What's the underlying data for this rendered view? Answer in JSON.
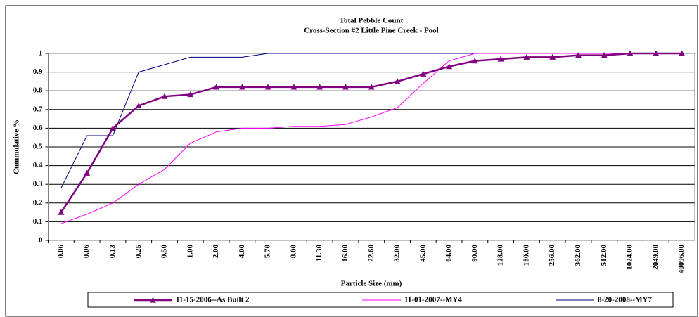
{
  "chart_data": {
    "type": "line",
    "title": "Total Pebble Count",
    "subtitle": "Cross-Section #2 Little Pine Creek - Pool",
    "x_label": "Particle Size (mm)",
    "y_label": "Cummulative %",
    "categories": [
      "0.06",
      "0.06",
      "0.13",
      "0.25",
      "0.50",
      "1.00",
      "2.00",
      "4.00",
      "5.70",
      "8.00",
      "11.30",
      "16.00",
      "22.60",
      "32.00",
      "45.00",
      "64.00",
      "90.00",
      "128.00",
      "180.00",
      "256.00",
      "362.00",
      "512.00",
      "1024.00",
      "2049.00",
      "40096.00"
    ],
    "series": [
      {
        "name": "11-15-2006--As Built 2",
        "color": "#800080",
        "marker": "triangle",
        "values": [
          0.15,
          0.36,
          0.6,
          0.72,
          0.77,
          0.78,
          0.82,
          0.82,
          0.82,
          0.82,
          0.82,
          0.82,
          0.82,
          0.85,
          0.89,
          0.93,
          0.96,
          0.97,
          0.98,
          0.98,
          0.99,
          0.99,
          1,
          1,
          1
        ]
      },
      {
        "name": "11-01-2007--MY4",
        "color": "#ff00ff",
        "values": [
          0.09,
          0.14,
          0.2,
          0.3,
          0.38,
          0.52,
          0.58,
          0.6,
          0.6,
          0.61,
          0.61,
          0.62,
          0.66,
          0.71,
          0.84,
          0.96,
          1,
          1,
          1,
          1,
          1,
          1,
          1,
          1,
          1
        ]
      },
      {
        "name": "8-20-2008--MY7",
        "color": "#000080",
        "values": [
          0.28,
          0.56,
          0.56,
          0.9,
          0.94,
          0.98,
          0.98,
          0.98,
          1,
          1,
          1,
          1,
          1,
          1,
          1,
          1,
          1,
          1,
          1,
          1,
          1,
          1,
          1,
          1,
          1
        ]
      }
    ],
    "ylim": [
      0,
      1
    ],
    "yticks": [
      0,
      0.1,
      0.2,
      0.3,
      0.4,
      0.5,
      0.6,
      0.7,
      0.8,
      0.9,
      1
    ],
    "grid": true,
    "legend": "bottom"
  }
}
